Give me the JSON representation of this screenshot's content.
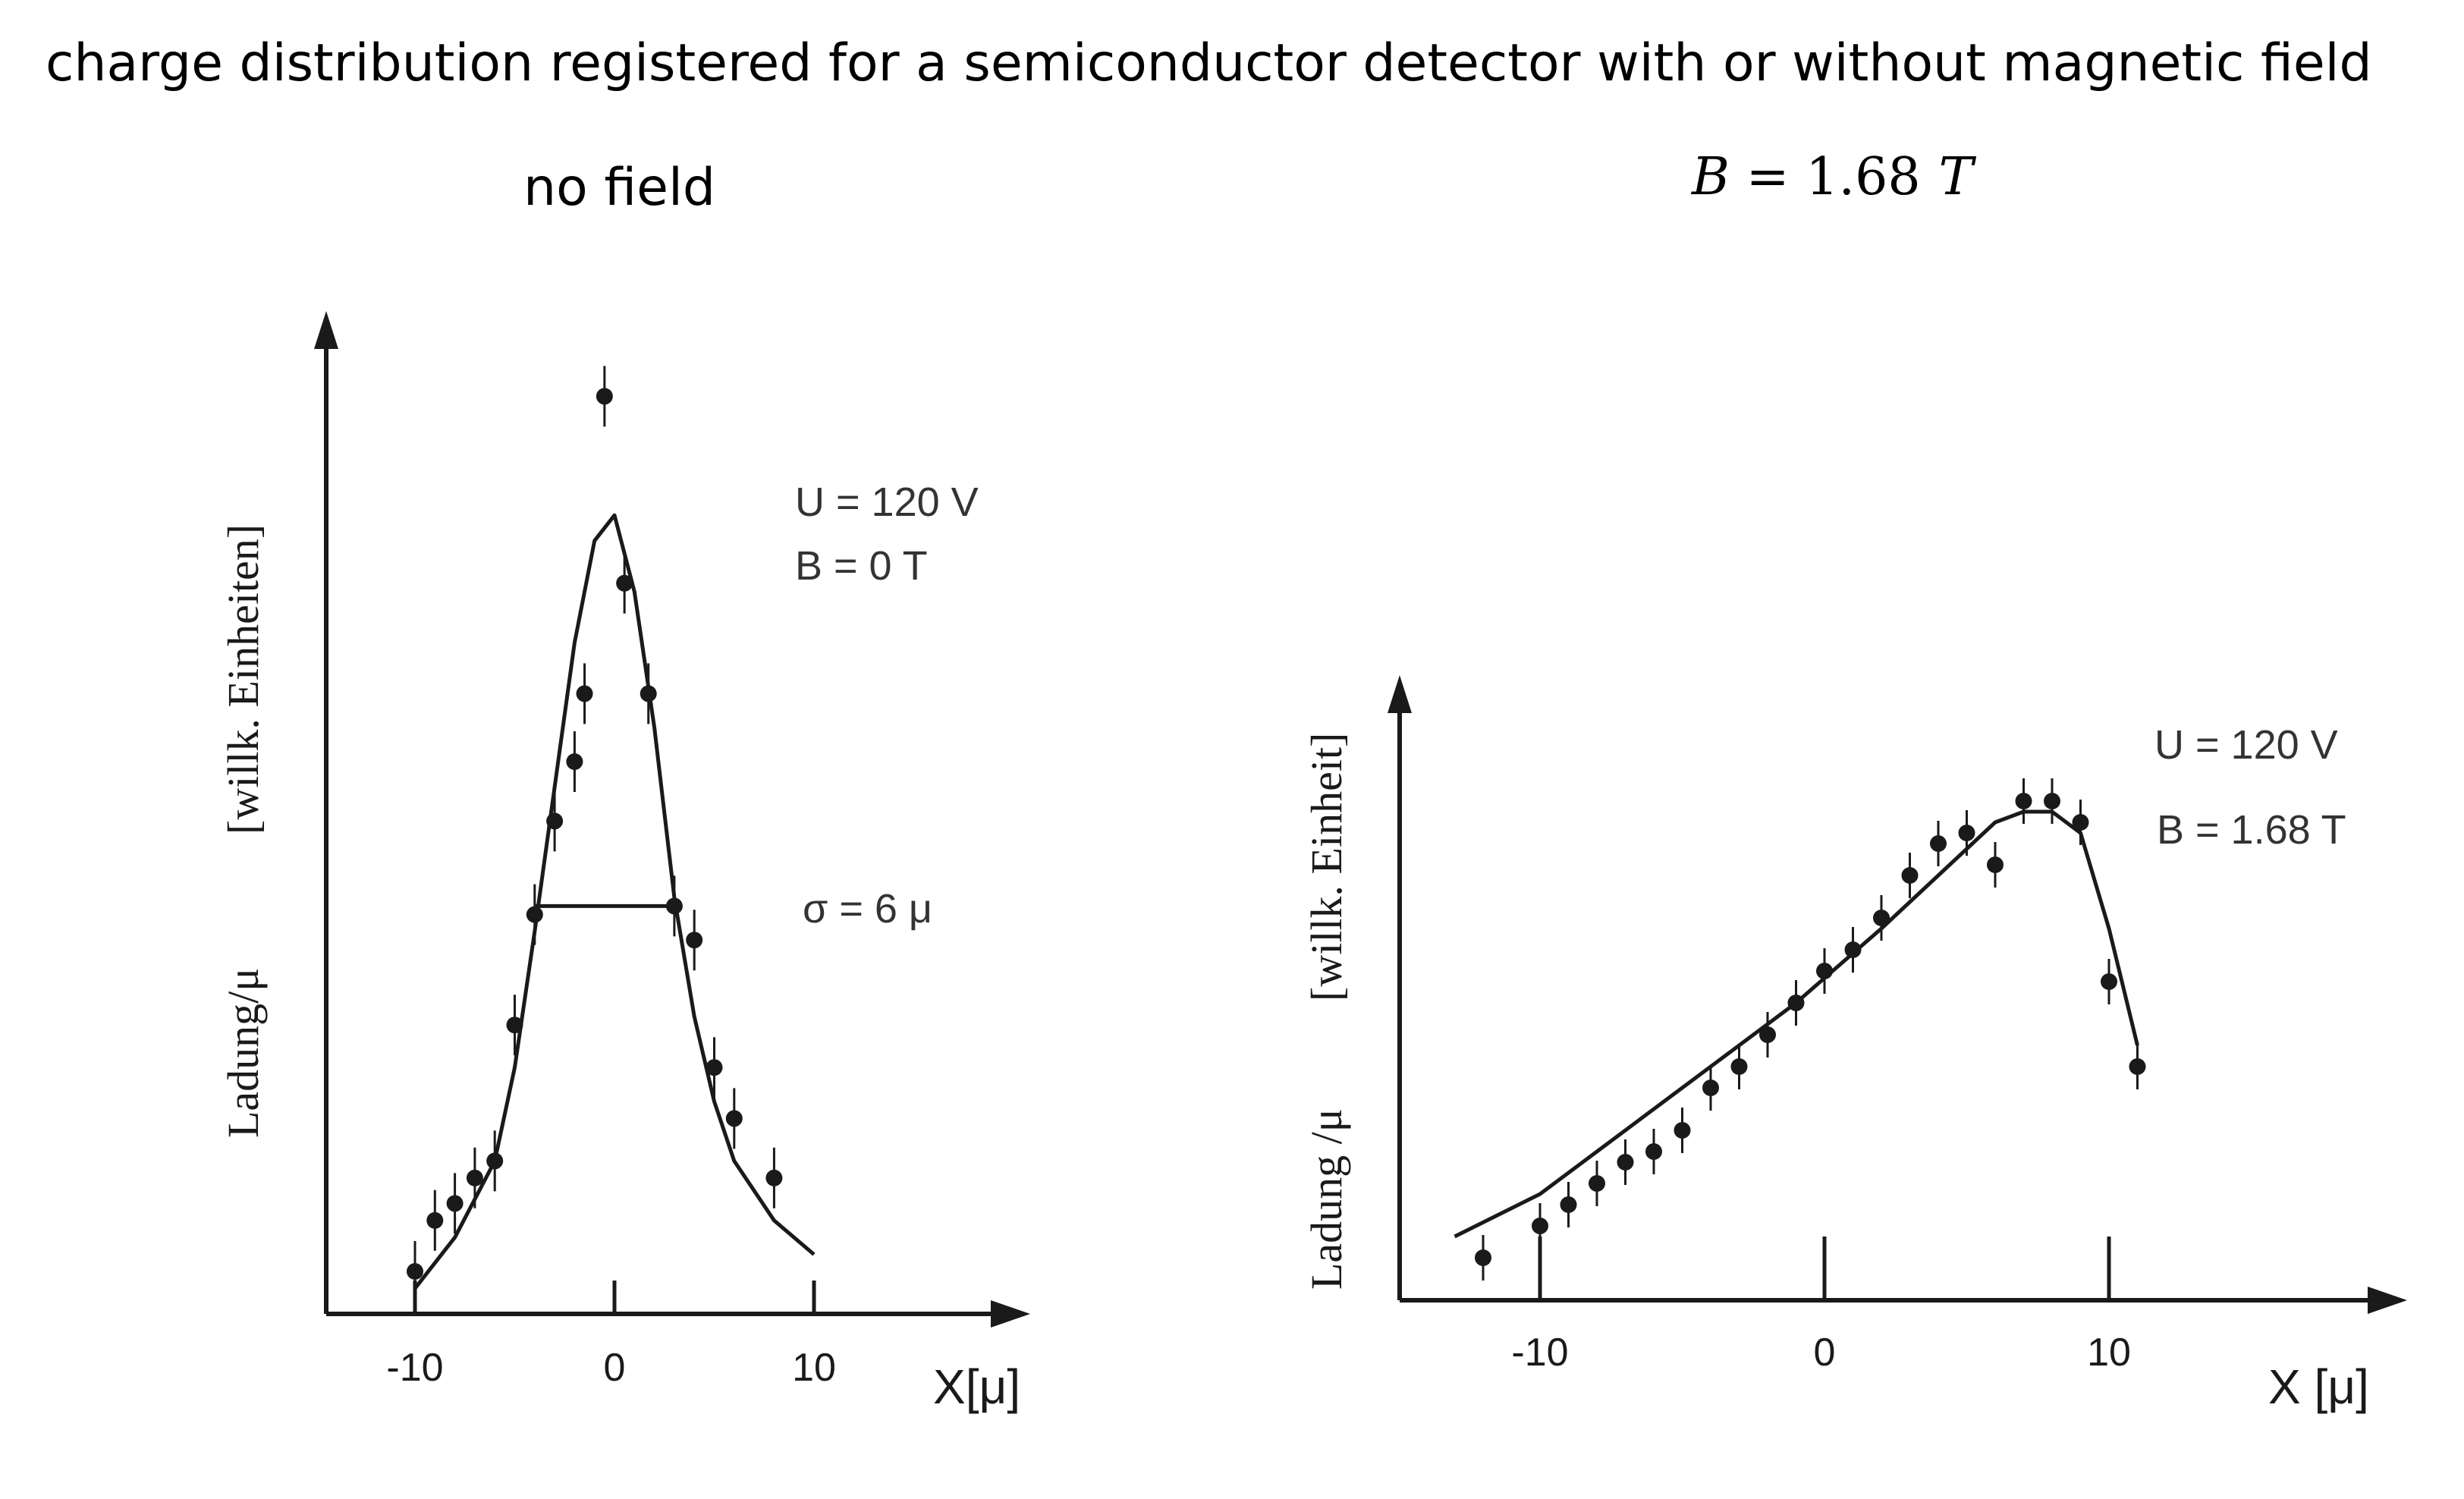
{
  "page": {
    "title": "charge distribution registered for a semiconductor detector with or without magnetic field",
    "panels": [
      {
        "title": "no field"
      },
      {
        "title_var": "B",
        "title_eq": "=",
        "title_val": "1.68",
        "title_unit": "T"
      }
    ]
  },
  "colors": {
    "ink": "#1a1a1a",
    "background": "#ffffff"
  },
  "chart_data": [
    {
      "type": "scatter",
      "ylabel_1": "Ladung/μ",
      "ylabel_2": "[willk. Einheiten]",
      "xlabel": "X[μ]",
      "xticks": [
        "-10",
        "0",
        "10"
      ],
      "xlim": [
        -15,
        20
      ],
      "ylim": [
        0,
        1.2
      ],
      "annotations": [
        "U = 120 V",
        "B = 0 T",
        "σ = 6 μ"
      ],
      "points": [
        {
          "x": -10,
          "y": 0.05
        },
        {
          "x": -9,
          "y": 0.11
        },
        {
          "x": -8,
          "y": 0.13
        },
        {
          "x": -7,
          "y": 0.16
        },
        {
          "x": -6,
          "y": 0.18
        },
        {
          "x": -5,
          "y": 0.34
        },
        {
          "x": -4,
          "y": 0.47
        },
        {
          "x": -3,
          "y": 0.58
        },
        {
          "x": -2,
          "y": 0.65
        },
        {
          "x": -1.5,
          "y": 0.73
        },
        {
          "x": -0.5,
          "y": 1.08
        },
        {
          "x": 0.5,
          "y": 0.86
        },
        {
          "x": 1.7,
          "y": 0.73
        },
        {
          "x": 3,
          "y": 0.48
        },
        {
          "x": 4,
          "y": 0.44
        },
        {
          "x": 5,
          "y": 0.29
        },
        {
          "x": 6,
          "y": 0.23
        },
        {
          "x": 8,
          "y": 0.16
        }
      ],
      "fit": [
        {
          "x": -10,
          "y": 0.03
        },
        {
          "x": -8,
          "y": 0.09
        },
        {
          "x": -6,
          "y": 0.18
        },
        {
          "x": -5,
          "y": 0.29
        },
        {
          "x": -4,
          "y": 0.45
        },
        {
          "x": -3,
          "y": 0.62
        },
        {
          "x": -2,
          "y": 0.79
        },
        {
          "x": -1,
          "y": 0.91
        },
        {
          "x": 0,
          "y": 0.94
        },
        {
          "x": 1,
          "y": 0.85
        },
        {
          "x": 2,
          "y": 0.69
        },
        {
          "x": 3,
          "y": 0.49
        },
        {
          "x": 4,
          "y": 0.35
        },
        {
          "x": 5,
          "y": 0.25
        },
        {
          "x": 6,
          "y": 0.18
        },
        {
          "x": 8,
          "y": 0.11
        },
        {
          "x": 10,
          "y": 0.07
        }
      ],
      "sigma_line": {
        "x0": -4,
        "x1": 3,
        "y": 0.48
      }
    },
    {
      "type": "scatter",
      "ylabel_1": "Ladung /μ",
      "ylabel_2": "[willk. Einheit]",
      "xlabel": "X [μ]",
      "xticks": [
        "-10",
        "0",
        "10"
      ],
      "xlim": [
        -15,
        20
      ],
      "ylim": [
        0,
        1.2
      ],
      "annotations": [
        "U = 120 V",
        "B = 1.68 T"
      ],
      "points": [
        {
          "x": -12,
          "y": 0.04
        },
        {
          "x": -10,
          "y": 0.07
        },
        {
          "x": -9,
          "y": 0.09
        },
        {
          "x": -8,
          "y": 0.11
        },
        {
          "x": -7,
          "y": 0.13
        },
        {
          "x": -6,
          "y": 0.14
        },
        {
          "x": -5,
          "y": 0.16
        },
        {
          "x": -4,
          "y": 0.2
        },
        {
          "x": -3,
          "y": 0.22
        },
        {
          "x": -2,
          "y": 0.25
        },
        {
          "x": -1,
          "y": 0.28
        },
        {
          "x": 0,
          "y": 0.31
        },
        {
          "x": 1,
          "y": 0.33
        },
        {
          "x": 2,
          "y": 0.36
        },
        {
          "x": 3,
          "y": 0.4
        },
        {
          "x": 4,
          "y": 0.43
        },
        {
          "x": 5,
          "y": 0.44
        },
        {
          "x": 6,
          "y": 0.41
        },
        {
          "x": 7,
          "y": 0.47
        },
        {
          "x": 8,
          "y": 0.47
        },
        {
          "x": 9,
          "y": 0.45
        },
        {
          "x": 10,
          "y": 0.3
        },
        {
          "x": 11,
          "y": 0.22
        }
      ],
      "fit": [
        {
          "x": -13,
          "y": 0.06
        },
        {
          "x": -10,
          "y": 0.1
        },
        {
          "x": -7,
          "y": 0.16
        },
        {
          "x": -4,
          "y": 0.22
        },
        {
          "x": -1,
          "y": 0.28
        },
        {
          "x": 2,
          "y": 0.35
        },
        {
          "x": 4,
          "y": 0.4
        },
        {
          "x": 6,
          "y": 0.45
        },
        {
          "x": 7,
          "y": 0.46
        },
        {
          "x": 8,
          "y": 0.46
        },
        {
          "x": 9,
          "y": 0.44
        },
        {
          "x": 10,
          "y": 0.35
        },
        {
          "x": 11,
          "y": 0.24
        }
      ]
    }
  ]
}
